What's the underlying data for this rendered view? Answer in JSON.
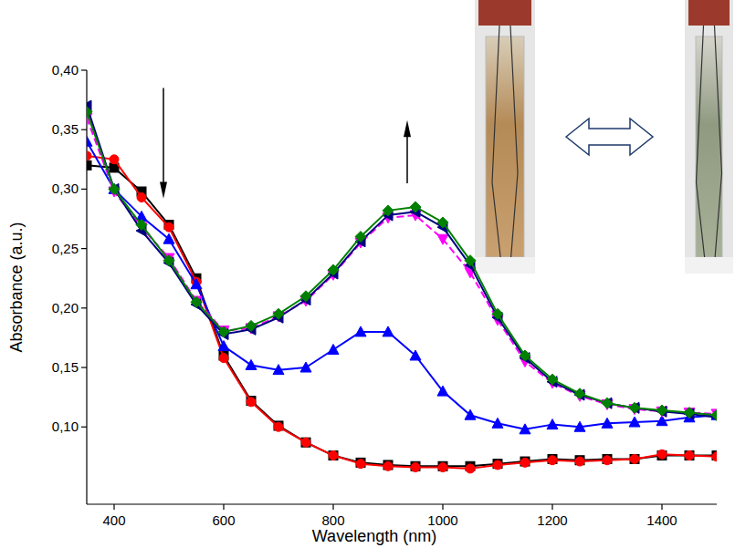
{
  "chart_data": {
    "type": "line",
    "x_label": "Wavelength (nm)",
    "y_label": "Absorbance (a.u.)",
    "x": [
      350,
      400,
      450,
      500,
      550,
      600,
      650,
      700,
      750,
      800,
      850,
      900,
      950,
      1000,
      1050,
      1100,
      1150,
      1200,
      1250,
      1300,
      1350,
      1400,
      1450,
      1500
    ],
    "series": [
      {
        "color": "#000000",
        "marker": "square",
        "line_style": "solid",
        "values": [
          0.32,
          0.318,
          0.298,
          0.27,
          0.225,
          0.16,
          0.122,
          0.101,
          0.087,
          0.076,
          0.07,
          0.068,
          0.067,
          0.067,
          0.067,
          0.069,
          0.071,
          0.073,
          0.072,
          0.073,
          0.073,
          0.076,
          0.076,
          0.076
        ]
      },
      {
        "color": "#ff0000",
        "marker": "circle",
        "line_style": "solid",
        "values": [
          0.328,
          0.325,
          0.293,
          0.268,
          0.222,
          0.158,
          0.121,
          0.1,
          0.087,
          0.076,
          0.069,
          0.067,
          0.066,
          0.066,
          0.065,
          0.068,
          0.07,
          0.072,
          0.071,
          0.072,
          0.073,
          0.077,
          0.076,
          0.075
        ]
      },
      {
        "color": "#0000ff",
        "marker": "triangle-up",
        "line_style": "solid",
        "values": [
          0.34,
          0.3,
          0.277,
          0.258,
          0.22,
          0.168,
          0.152,
          0.148,
          0.15,
          0.165,
          0.18,
          0.18,
          0.16,
          0.13,
          0.11,
          0.103,
          0.098,
          0.102,
          0.1,
          0.103,
          0.104,
          0.105,
          0.108,
          0.11
        ]
      },
      {
        "color": "#ff00ff",
        "marker": "triangle-down",
        "line_style": "dashed",
        "values": [
          0.36,
          0.298,
          0.268,
          0.242,
          0.206,
          0.181,
          0.183,
          0.193,
          0.206,
          0.228,
          0.255,
          0.276,
          0.278,
          0.258,
          0.23,
          0.19,
          0.155,
          0.137,
          0.126,
          0.119,
          0.115,
          0.113,
          0.112,
          0.111
        ]
      },
      {
        "color": "#000080",
        "marker": "triangle-left",
        "line_style": "solid",
        "values": [
          0.37,
          0.3,
          0.265,
          0.238,
          0.203,
          0.178,
          0.182,
          0.192,
          0.207,
          0.229,
          0.256,
          0.278,
          0.281,
          0.268,
          0.236,
          0.192,
          0.158,
          0.138,
          0.127,
          0.12,
          0.116,
          0.113,
          0.111,
          0.108
        ]
      },
      {
        "color": "#008000",
        "marker": "diamond",
        "line_style": "solid",
        "values": [
          0.365,
          0.3,
          0.27,
          0.24,
          0.205,
          0.18,
          0.185,
          0.195,
          0.21,
          0.232,
          0.26,
          0.282,
          0.285,
          0.272,
          0.24,
          0.195,
          0.16,
          0.14,
          0.128,
          0.12,
          0.116,
          0.114,
          0.112,
          0.11
        ]
      }
    ],
    "xlim": [
      350,
      1500
    ],
    "ylim": [
      0.035,
      0.4
    ],
    "xticks": [
      400,
      600,
      800,
      1000,
      1200,
      1400
    ],
    "yticks": [
      {
        "value": 0.1,
        "label": "0,10"
      },
      {
        "value": 0.15,
        "label": "0,15"
      },
      {
        "value": 0.2,
        "label": "0,20"
      },
      {
        "value": 0.25,
        "label": "0,25"
      },
      {
        "value": 0.3,
        "label": "0,30"
      },
      {
        "value": 0.35,
        "label": "0,35"
      },
      {
        "value": 0.4,
        "label": "0,40"
      }
    ],
    "grid": false
  }
}
